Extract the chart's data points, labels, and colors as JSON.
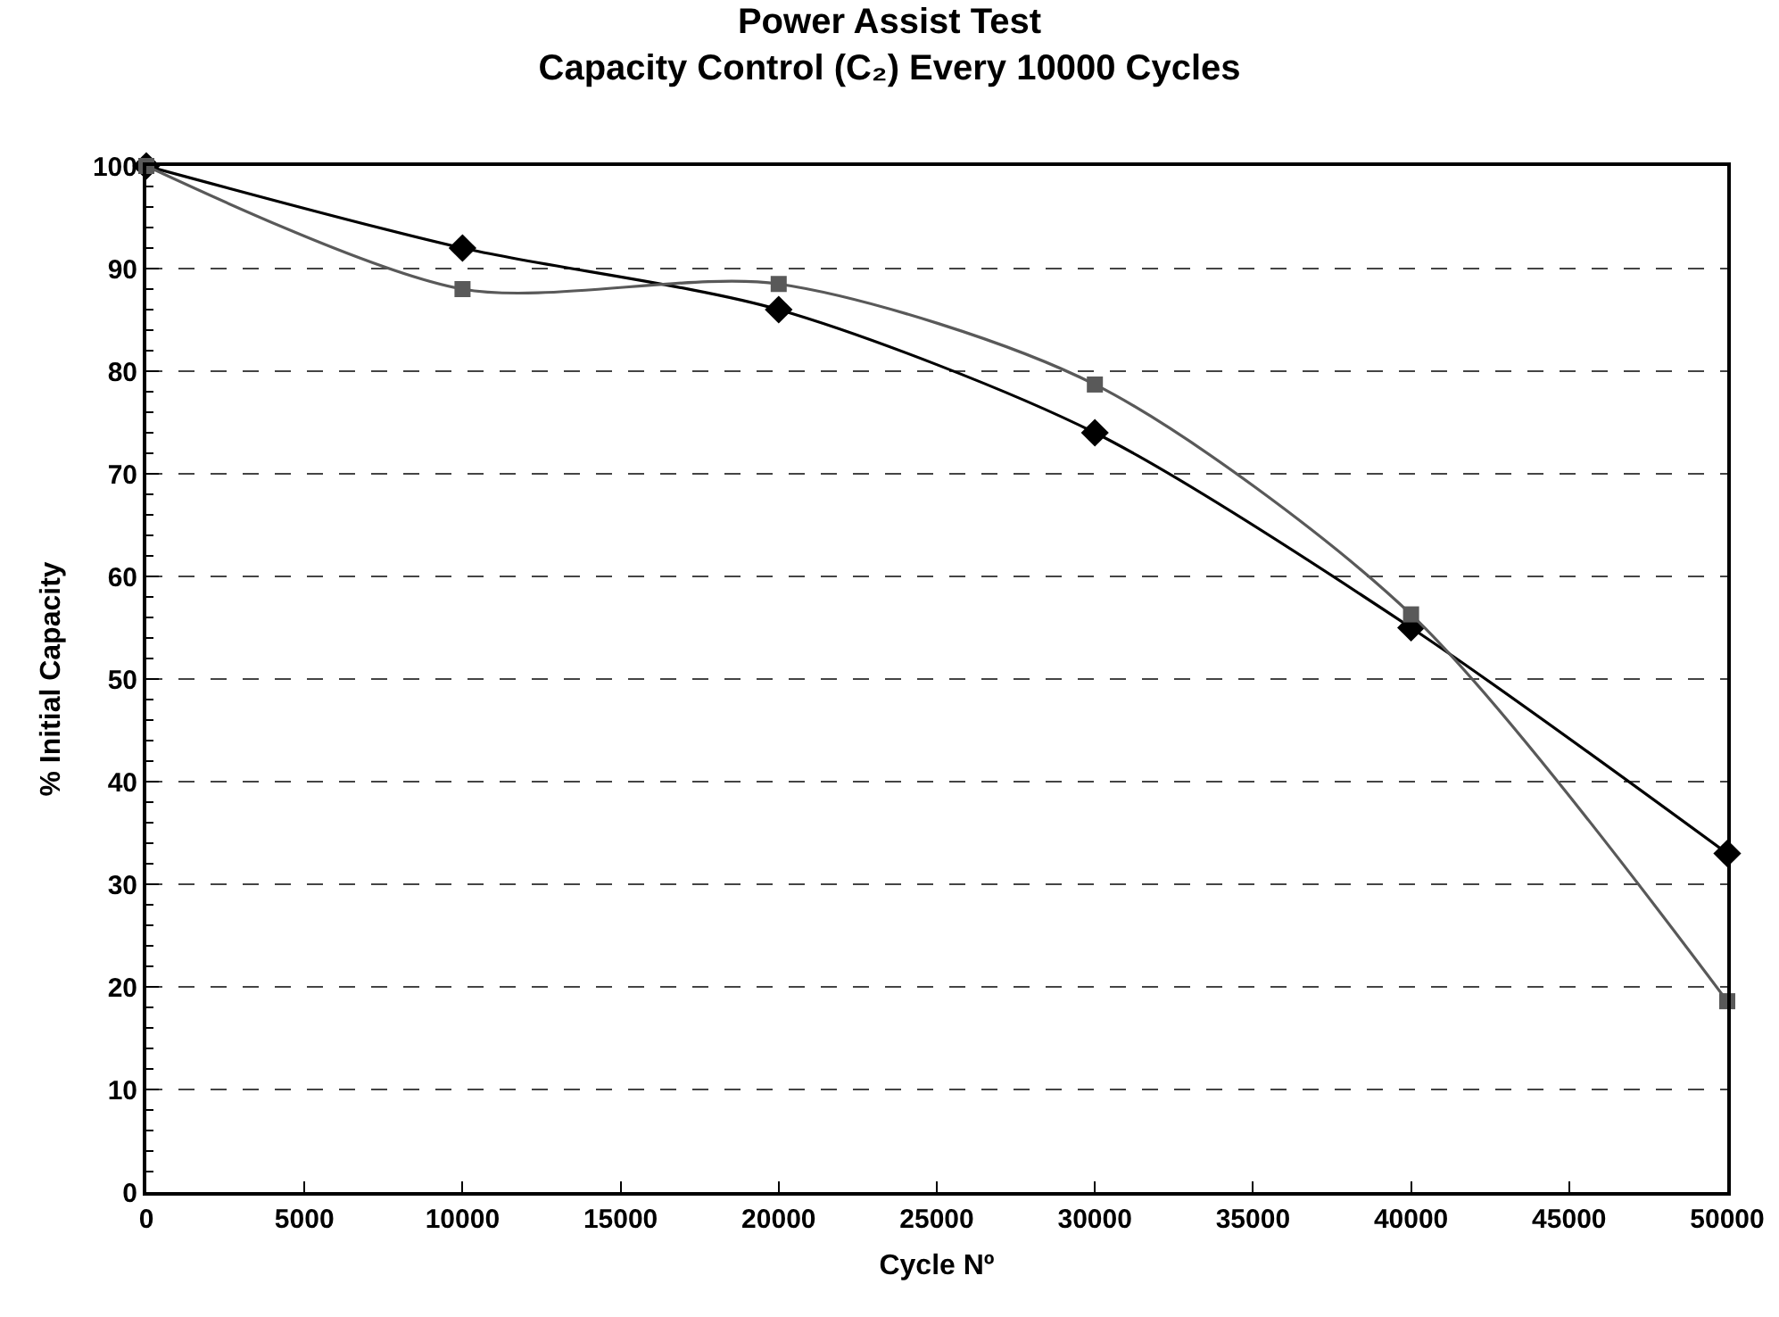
{
  "chart_data": {
    "type": "line",
    "title": "Power Assist Test",
    "subtitle": "Capacity Control (C₂) Every 10000 Cycles",
    "xlabel": "Cycle Nº",
    "ylabel": "% Initial Capacity",
    "x": [
      0,
      10000,
      20000,
      30000,
      40000,
      50000
    ],
    "series": [
      {
        "color": "#000000",
        "marker": "diamond",
        "values": [
          100,
          92,
          86,
          74,
          55,
          33
        ]
      },
      {
        "color": "#595959",
        "marker": "square",
        "values": [
          100,
          88,
          88.5,
          78.7,
          56.3,
          18.6
        ]
      }
    ],
    "xlim": [
      0,
      50000
    ],
    "xticks": [
      0,
      5000,
      10000,
      15000,
      20000,
      25000,
      30000,
      35000,
      40000,
      45000,
      50000
    ],
    "ylim": [
      0,
      100
    ],
    "yticks": [
      0,
      10,
      20,
      30,
      40,
      50,
      60,
      70,
      80,
      90,
      100
    ],
    "grid": "y",
    "line_style": "solid"
  }
}
